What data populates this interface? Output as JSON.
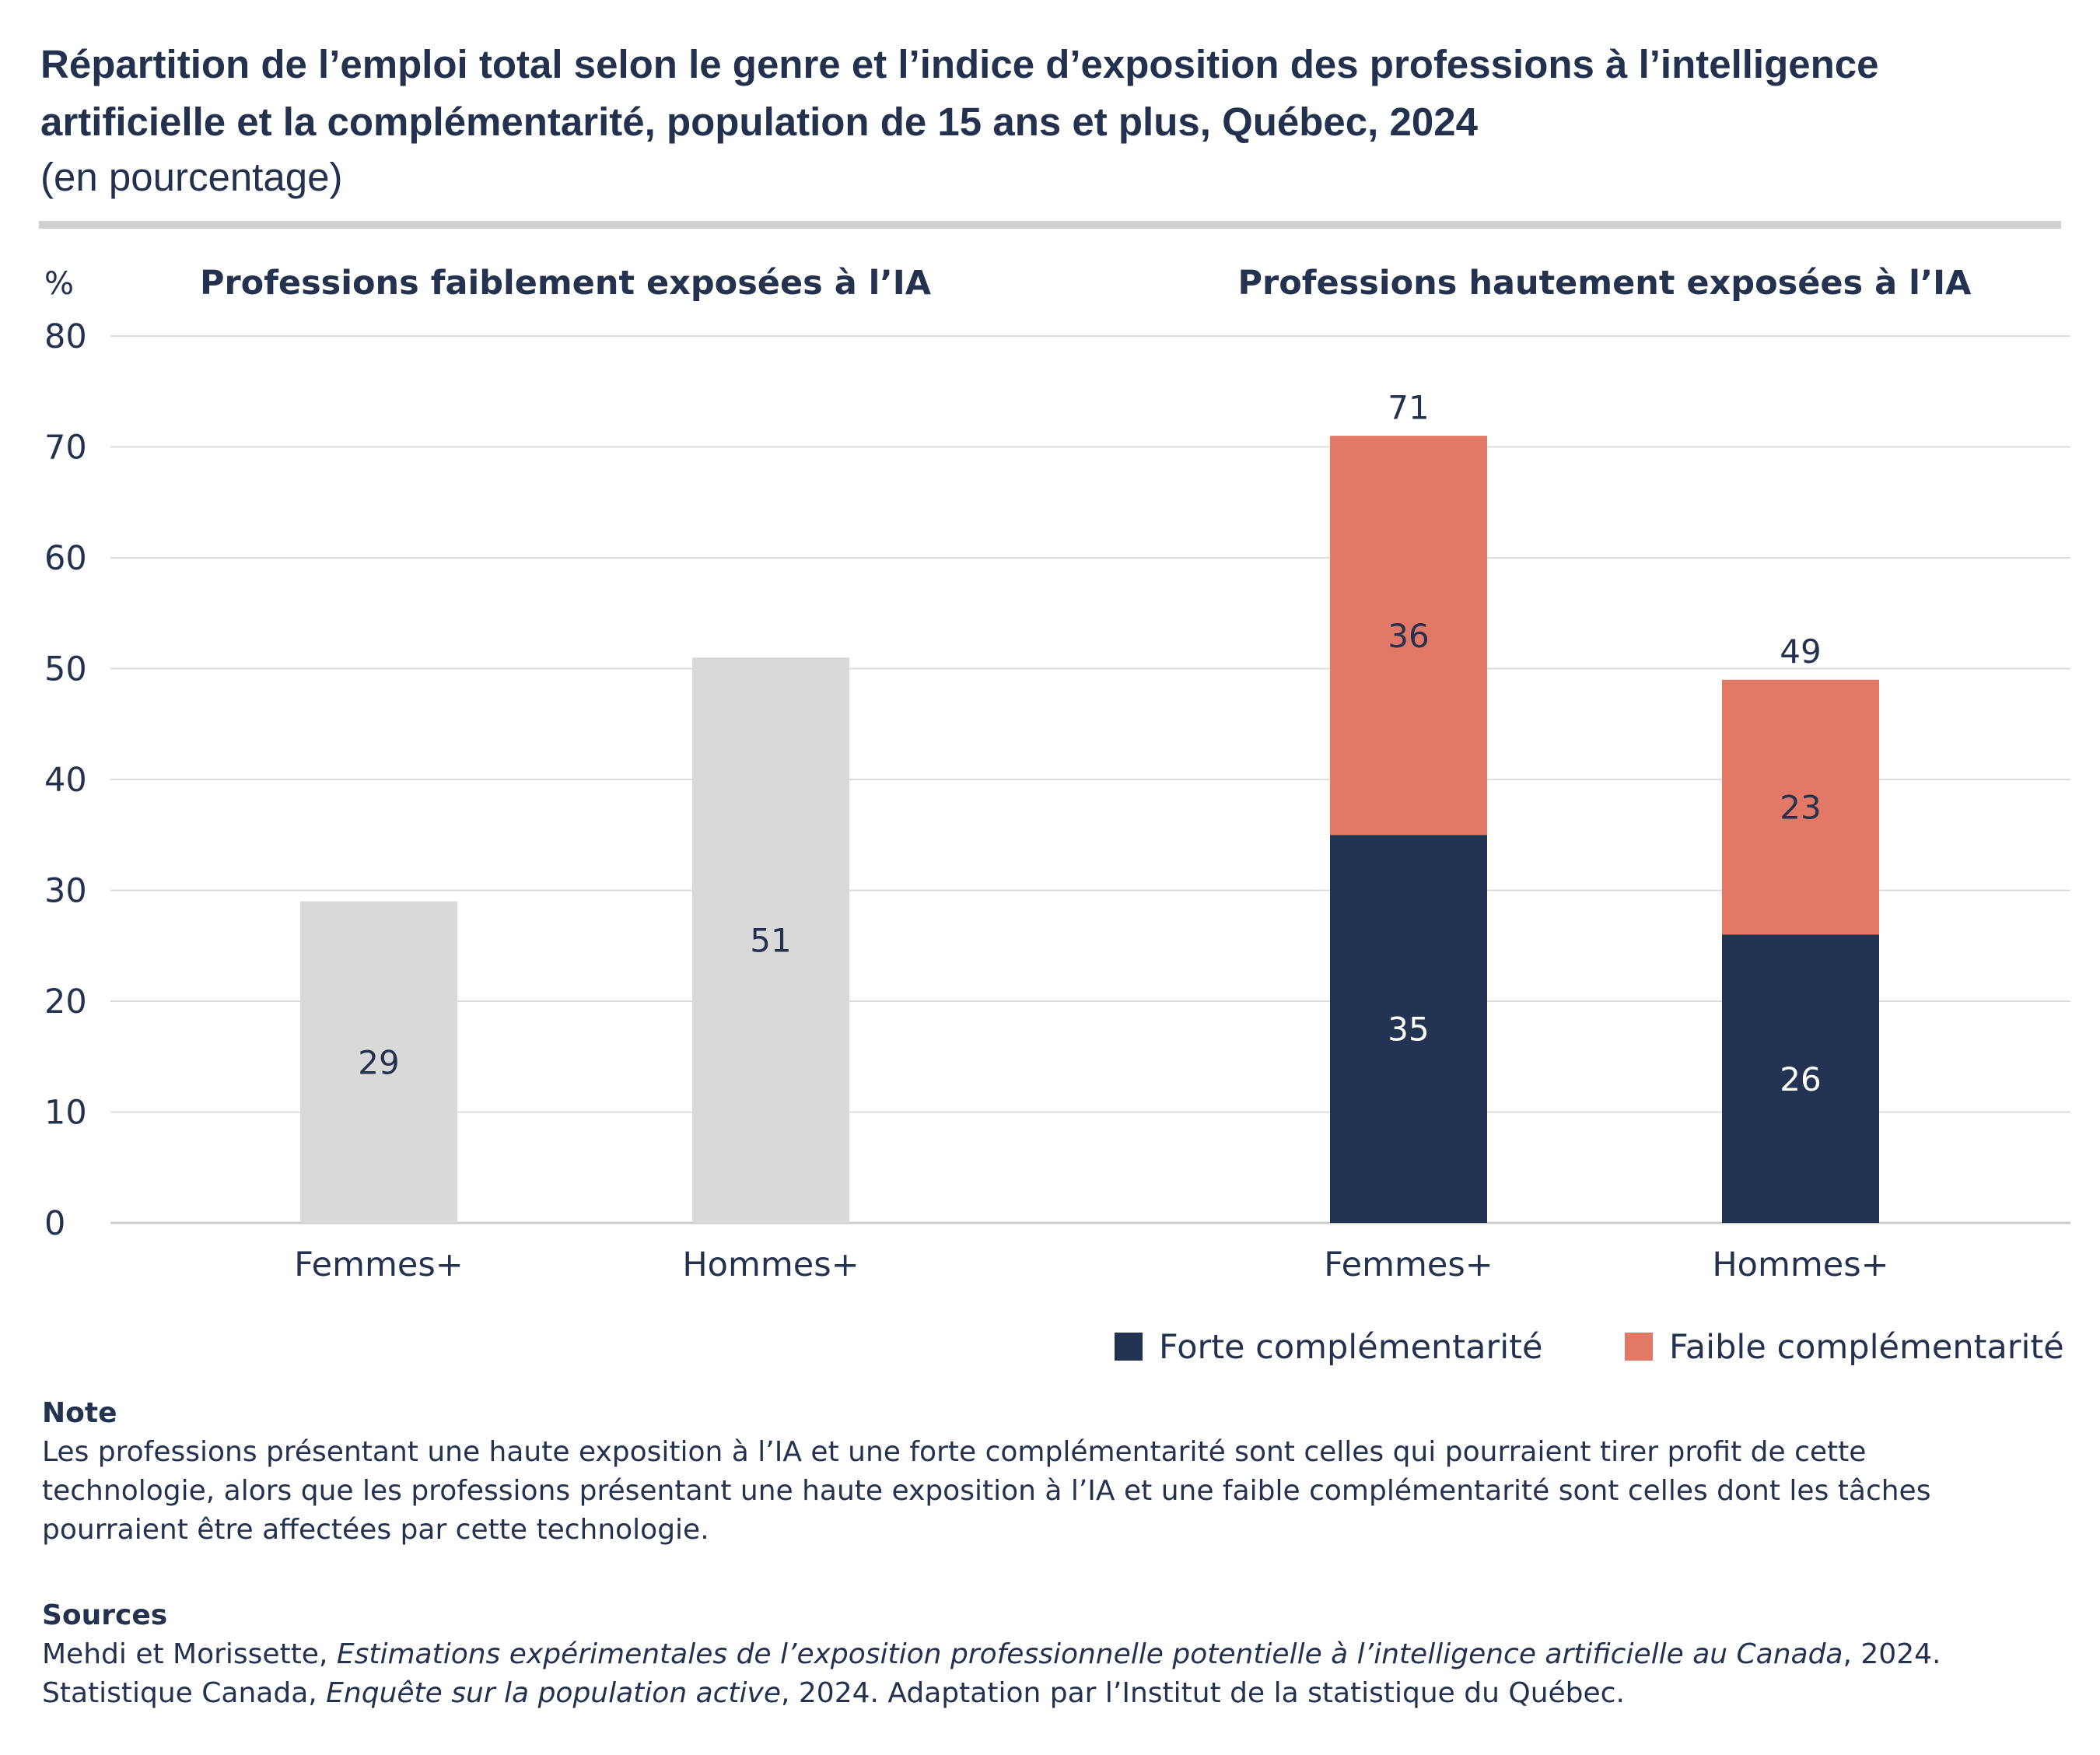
{
  "title": "Répartition de l’emploi total selon le genre et l’indice d’exposition des professions à l’intelligence artificielle et la complémentarité, population de 15 ans et plus, Québec, 2024",
  "subtitle": "(en pourcentage)",
  "colors": {
    "grey_bar": "#d9d9d9",
    "forte": "#223451",
    "faible": "#e27866",
    "text": "#23324f",
    "grid": "#dcdcdc"
  },
  "chart_data": {
    "type": "bar",
    "ylabel": "%",
    "ylim": [
      0,
      80
    ],
    "yticks": [
      0,
      10,
      20,
      30,
      40,
      50,
      60,
      70,
      80
    ],
    "grid": true,
    "legend_position": "bottom-right",
    "panels": [
      {
        "title": "Professions faiblement exposées à l’IA",
        "stacked": false,
        "categories": [
          "Femmes+",
          "Hommes+"
        ],
        "series": [
          {
            "name": "Total",
            "color_key": "grey_bar",
            "values": [
              29,
              51
            ],
            "labels": [
              "29",
              "51"
            ]
          }
        ]
      },
      {
        "title": "Professions hautement exposées à l’IA",
        "stacked": true,
        "categories": [
          "Femmes+",
          "Hommes+"
        ],
        "series": [
          {
            "name": "Forte complémentarité",
            "color_key": "forte",
            "values": [
              35,
              26
            ],
            "labels": [
              "35",
              "26"
            ]
          },
          {
            "name": "Faible complémentarité",
            "color_key": "faible",
            "values": [
              36,
              23
            ],
            "labels": [
              "36",
              "23"
            ]
          }
        ],
        "totals": [
          71,
          49
        ],
        "total_labels": [
          "71",
          "49"
        ]
      }
    ],
    "legend": [
      "Forte complémentarité",
      "Faible complémentarité"
    ]
  },
  "note": {
    "heading": "Note",
    "text": "Les professions présentant une haute exposition à l’IA et une forte complémentarité sont celles qui pourraient tirer profit de cette technologie, alors que les professions présentant une haute exposition à l’IA et une faible complémentarité sont celles dont les tâches pourraient être affectées par cette technologie."
  },
  "sources": {
    "heading": "Sources",
    "line1_prefix": "Mehdi et Morissette, ",
    "line1_italic": "Estimations expérimentales de l’exposition professionnelle potentielle à l’intelligence artificielle au Canada",
    "line1_suffix": ", 2024.",
    "line2_prefix": "Statistique Canada, ",
    "line2_italic": "Enquête sur la population active",
    "line2_suffix": ", 2024. Adaptation par l’Institut de la statistique du Québec."
  }
}
